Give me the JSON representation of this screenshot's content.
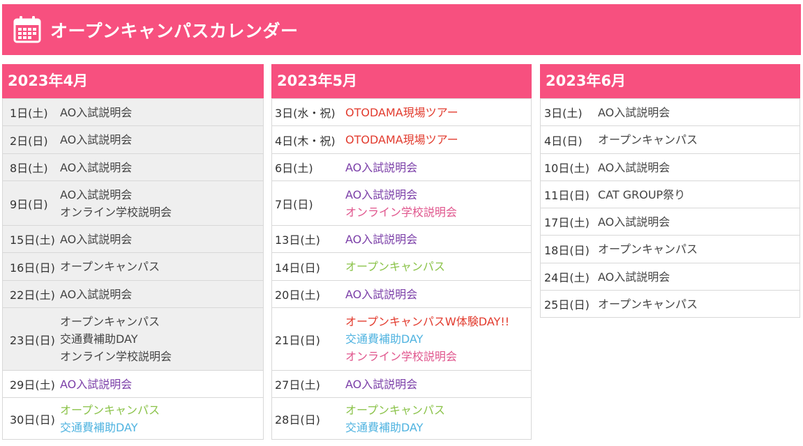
{
  "banner": {
    "title": "オープンキャンパスカレンダー"
  },
  "colors": {
    "accent": "#f7507f",
    "purple": "#7b3fa8",
    "red": "#e23b2e",
    "green": "#8bc34a",
    "blue": "#4fb3e0",
    "pink": "#e0568d"
  },
  "months": [
    {
      "title": "2023年4月",
      "rows": [
        {
          "date": "1日(土)",
          "gray": true,
          "events": [
            {
              "text": "AO入試説明会",
              "color": "dark"
            }
          ]
        },
        {
          "date": "2日(日)",
          "gray": true,
          "events": [
            {
              "text": "AO入試説明会",
              "color": "dark"
            }
          ]
        },
        {
          "date": "8日(土)",
          "gray": true,
          "events": [
            {
              "text": "AO入試説明会",
              "color": "dark"
            }
          ]
        },
        {
          "date": "9日(日)",
          "gray": true,
          "events": [
            {
              "text": "AO入試説明会",
              "color": "dark"
            },
            {
              "text": "オンライン学校説明会",
              "color": "dark"
            }
          ]
        },
        {
          "date": "15日(土)",
          "gray": true,
          "events": [
            {
              "text": "AO入試説明会",
              "color": "dark"
            }
          ]
        },
        {
          "date": "16日(日)",
          "gray": true,
          "events": [
            {
              "text": "オープンキャンパス",
              "color": "dark"
            }
          ]
        },
        {
          "date": "22日(土)",
          "gray": true,
          "events": [
            {
              "text": "AO入試説明会",
              "color": "dark"
            }
          ]
        },
        {
          "date": "23日(日)",
          "gray": true,
          "events": [
            {
              "text": "オープンキャンパス",
              "color": "dark"
            },
            {
              "text": "交通費補助DAY",
              "color": "dark"
            },
            {
              "text": "オンライン学校説明会",
              "color": "dark"
            }
          ]
        },
        {
          "date": "29日(土)",
          "gray": false,
          "events": [
            {
              "text": "AO入試説明会",
              "color": "purple"
            }
          ]
        },
        {
          "date": "30日(日)",
          "gray": false,
          "events": [
            {
              "text": "オープンキャンパス",
              "color": "green"
            },
            {
              "text": "交通費補助DAY",
              "color": "blue"
            }
          ]
        }
      ]
    },
    {
      "title": "2023年5月",
      "rows": [
        {
          "date": "3日(水・祝)",
          "gray": false,
          "events": [
            {
              "text": "OTODAMA現場ツアー",
              "color": "red"
            }
          ]
        },
        {
          "date": "4日(木・祝)",
          "gray": false,
          "events": [
            {
              "text": "OTODAMA現場ツアー",
              "color": "red"
            }
          ]
        },
        {
          "date": "6日(土)",
          "gray": false,
          "events": [
            {
              "text": "AO入試説明会",
              "color": "purple"
            }
          ]
        },
        {
          "date": "7日(日)",
          "gray": false,
          "events": [
            {
              "text": "AO入試説明会",
              "color": "purple"
            },
            {
              "text": "オンライン学校説明会",
              "color": "pink"
            }
          ]
        },
        {
          "date": "13日(土)",
          "gray": false,
          "events": [
            {
              "text": "AO入試説明会",
              "color": "purple"
            }
          ]
        },
        {
          "date": "14日(日)",
          "gray": false,
          "events": [
            {
              "text": "オープンキャンパス",
              "color": "green"
            }
          ]
        },
        {
          "date": "20日(土)",
          "gray": false,
          "events": [
            {
              "text": "AO入試説明会",
              "color": "purple"
            }
          ]
        },
        {
          "date": "21日(日)",
          "gray": false,
          "events": [
            {
              "text": "オープンキャンパスW体験DAY!!",
              "color": "red"
            },
            {
              "text": "交通費補助DAY",
              "color": "blue"
            },
            {
              "text": "オンライン学校説明会",
              "color": "pink"
            }
          ]
        },
        {
          "date": "27日(土)",
          "gray": false,
          "events": [
            {
              "text": "AO入試説明会",
              "color": "purple"
            }
          ]
        },
        {
          "date": "28日(日)",
          "gray": false,
          "events": [
            {
              "text": "オープンキャンパス",
              "color": "green"
            },
            {
              "text": "交通費補助DAY",
              "color": "blue"
            }
          ]
        }
      ]
    },
    {
      "title": "2023年6月",
      "rows": [
        {
          "date": "3日(土)",
          "gray": false,
          "events": [
            {
              "text": "AO入試説明会",
              "color": "dark"
            }
          ]
        },
        {
          "date": "4日(日)",
          "gray": false,
          "events": [
            {
              "text": "オープンキャンパス",
              "color": "dark"
            }
          ]
        },
        {
          "date": "10日(土)",
          "gray": false,
          "events": [
            {
              "text": "AO入試説明会",
              "color": "dark"
            }
          ]
        },
        {
          "date": "11日(日)",
          "gray": false,
          "events": [
            {
              "text": "CAT GROUP祭り",
              "color": "dark"
            }
          ]
        },
        {
          "date": "17日(土)",
          "gray": false,
          "events": [
            {
              "text": "AO入試説明会",
              "color": "dark"
            }
          ]
        },
        {
          "date": "18日(日)",
          "gray": false,
          "events": [
            {
              "text": "オープンキャンパス",
              "color": "dark"
            }
          ]
        },
        {
          "date": "24日(土)",
          "gray": false,
          "events": [
            {
              "text": "AO入試説明会",
              "color": "dark"
            }
          ]
        },
        {
          "date": "25日(日)",
          "gray": false,
          "events": [
            {
              "text": "オープンキャンパス",
              "color": "dark"
            }
          ]
        }
      ]
    }
  ]
}
